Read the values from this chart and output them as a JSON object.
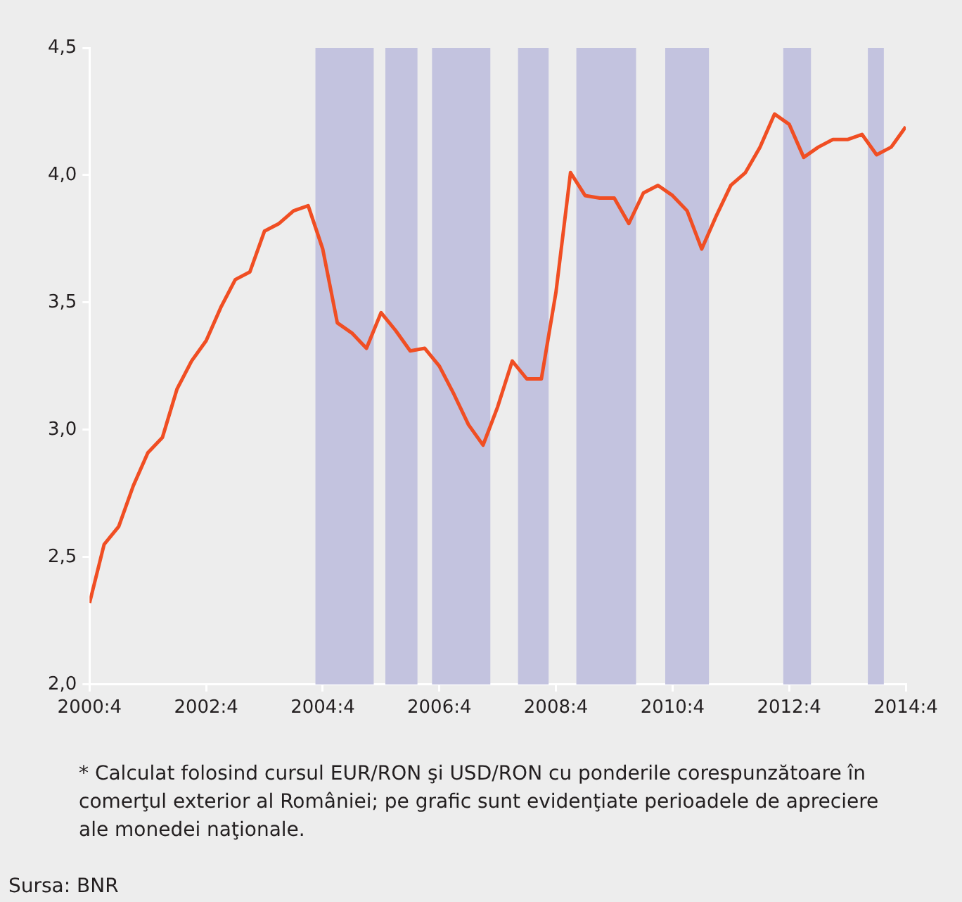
{
  "chart_data": {
    "type": "line",
    "x": [
      "2000-10",
      "2001-01",
      "2001-04",
      "2001-07",
      "2001-10",
      "2002-01",
      "2002-04",
      "2002-07",
      "2002-10",
      "2003-01",
      "2003-04",
      "2003-07",
      "2003-10",
      "2004-01",
      "2004-04",
      "2004-07",
      "2004-10",
      "2005-01",
      "2005-04",
      "2005-07",
      "2005-10",
      "2006-01",
      "2006-04",
      "2006-07",
      "2006-10",
      "2007-01",
      "2007-04",
      "2007-07",
      "2007-10",
      "2008-01",
      "2008-04",
      "2008-07",
      "2008-10",
      "2009-01",
      "2009-04",
      "2009-07",
      "2009-10",
      "2010-01",
      "2010-04",
      "2010-07",
      "2010-10",
      "2011-01",
      "2011-04",
      "2011-07",
      "2011-10",
      "2012-01",
      "2012-04",
      "2012-07",
      "2012-10",
      "2013-01",
      "2013-04",
      "2013-07",
      "2013-10",
      "2014-01",
      "2014-04",
      "2014-07",
      "2014-10"
    ],
    "series": [
      {
        "color": "#f04e23",
        "values": [
          2.32,
          2.55,
          2.62,
          2.78,
          2.91,
          2.97,
          3.16,
          3.27,
          3.35,
          3.48,
          3.59,
          3.62,
          3.78,
          3.81,
          3.86,
          3.88,
          3.71,
          3.42,
          3.38,
          3.32,
          3.46,
          3.39,
          3.31,
          3.32,
          3.25,
          3.14,
          3.02,
          2.94,
          3.09,
          3.27,
          3.2,
          3.2,
          3.54,
          4.01,
          3.92,
          3.91,
          3.91,
          3.81,
          3.93,
          3.96,
          3.92,
          3.86,
          3.71,
          3.84,
          3.96,
          4.01,
          4.11,
          4.24,
          4.2,
          4.07,
          4.11,
          4.14,
          4.14,
          4.16,
          4.08,
          4.11,
          4.19
        ]
      }
    ],
    "xlim": [
      "2000-10",
      "2014-10"
    ],
    "xticks": [
      {
        "value": "2000-10",
        "label": "2000:4"
      },
      {
        "value": "2002-10",
        "label": "2002:4"
      },
      {
        "value": "2004-10",
        "label": "2004:4"
      },
      {
        "value": "2006-10",
        "label": "2006:4"
      },
      {
        "value": "2008-10",
        "label": "2008:4"
      },
      {
        "value": "2010-10",
        "label": "2010:4"
      },
      {
        "value": "2012-10",
        "label": "2012:4"
      },
      {
        "value": "2014-10",
        "label": "2014:4"
      }
    ],
    "ylim": [
      2,
      4.5
    ],
    "yticks": [
      {
        "value": 2,
        "label": "2,0"
      },
      {
        "value": 2.5,
        "label": "2,5"
      },
      {
        "value": 3,
        "label": "3,0"
      },
      {
        "value": 3.5,
        "label": "3,5"
      },
      {
        "value": 4,
        "label": "4,0"
      },
      {
        "value": 4.5,
        "label": "4,5"
      }
    ],
    "bands": [
      {
        "axis": "x",
        "from": "2004-08-16",
        "to": "2005-08-16",
        "color": "#c3c3df"
      },
      {
        "axis": "x",
        "from": "2005-10-28",
        "to": "2006-05-16",
        "color": "#c3c3df"
      },
      {
        "axis": "x",
        "from": "2006-08-16",
        "to": "2007-08-16",
        "color": "#c3c3df"
      },
      {
        "axis": "x",
        "from": "2008-02-07",
        "to": "2008-08-16",
        "color": "#c3c3df"
      },
      {
        "axis": "x",
        "from": "2009-02-07",
        "to": "2010-02-16",
        "color": "#c3c3df"
      },
      {
        "axis": "x",
        "from": "2010-08-16",
        "to": "2011-05-16",
        "color": "#c3c3df"
      },
      {
        "axis": "x",
        "from": "2012-08-25",
        "to": "2013-02-16",
        "color": "#c3c3df"
      },
      {
        "axis": "x",
        "from": "2014-02-07",
        "to": "2014-05-16",
        "color": "#c3c3df"
      }
    ],
    "grid": false,
    "legend": false,
    "marker": "none",
    "line_style": "solid",
    "annotations": [
      "* Calculat folosind cursul EUR/RON şi USD/RON cu ponderile corespunzătoare în comerţul exterior al României; pe grafic sunt evidenţiate perioadele de apreciere ale monedei naţionale.",
      "Sursa: BNR"
    ]
  }
}
